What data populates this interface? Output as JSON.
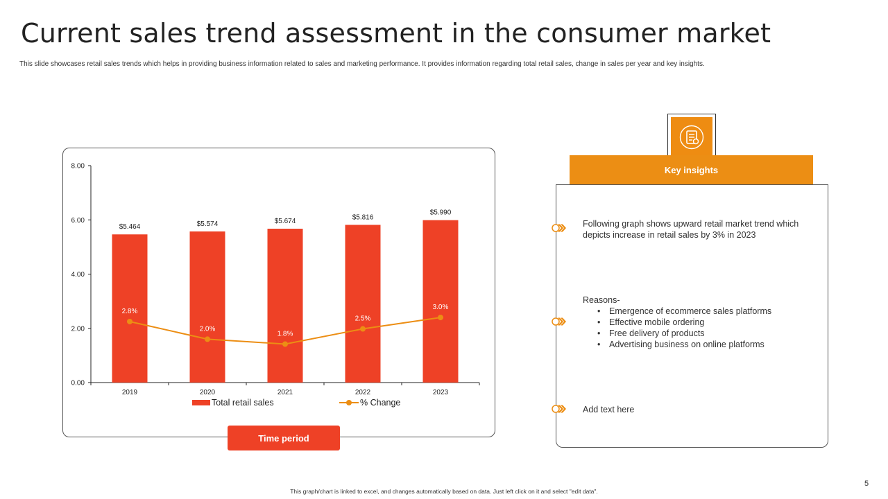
{
  "slide": {
    "title": "Current sales trend assessment in the consumer market",
    "subtitle": "This slide showcases retail sales trends which helps in providing business information related to sales and marketing performance. It provides information regarding total retail sales, change in sales per year and key insights.",
    "footer_note": "This graph/chart is linked to excel, and changes automatically based on data. Just left click on it and select \"edit data\".",
    "page_number": "5"
  },
  "chart_data": {
    "type": "bar",
    "title": "",
    "xlabel": "Time period",
    "ylabel": "",
    "categories": [
      "2019",
      "2020",
      "2021",
      "2022",
      "2023"
    ],
    "ylim": [
      0,
      8
    ],
    "y_ticks": [
      "0.00",
      "2.00",
      "4.00",
      "6.00",
      "8.00"
    ],
    "legend_position": "bottom",
    "series": [
      {
        "name": "Total retail sales",
        "kind": "bar",
        "color": "#ee4126",
        "values": [
          5.464,
          5.574,
          5.674,
          5.816,
          5.99
        ],
        "labels": [
          "$5.464",
          "$5.574",
          "$5.674",
          "$5.816",
          "$5.990"
        ]
      },
      {
        "name": "% Change",
        "kind": "line",
        "color": "#ec8e14",
        "plotted_values": [
          2.25,
          1.6,
          1.42,
          1.98,
          2.4
        ],
        "labels": [
          "2.8%",
          "2.0%",
          "1.8%",
          "2.5%",
          "3.0%"
        ]
      }
    ]
  },
  "time_period_button": {
    "label": "Time period"
  },
  "insights": {
    "header": "Key insights",
    "accent_color": "#ec8e14",
    "item1": {
      "text": "Following graph shows upward retail market trend which depicts increase in retail sales by 3% in 2023"
    },
    "item2": {
      "heading": "Reasons-",
      "reasons": [
        "Emergence of ecommerce sales platforms",
        "Effective mobile ordering",
        "Free delivery of products",
        "Advertising business on online platforms"
      ]
    },
    "item3": {
      "text": "Add text here"
    }
  }
}
